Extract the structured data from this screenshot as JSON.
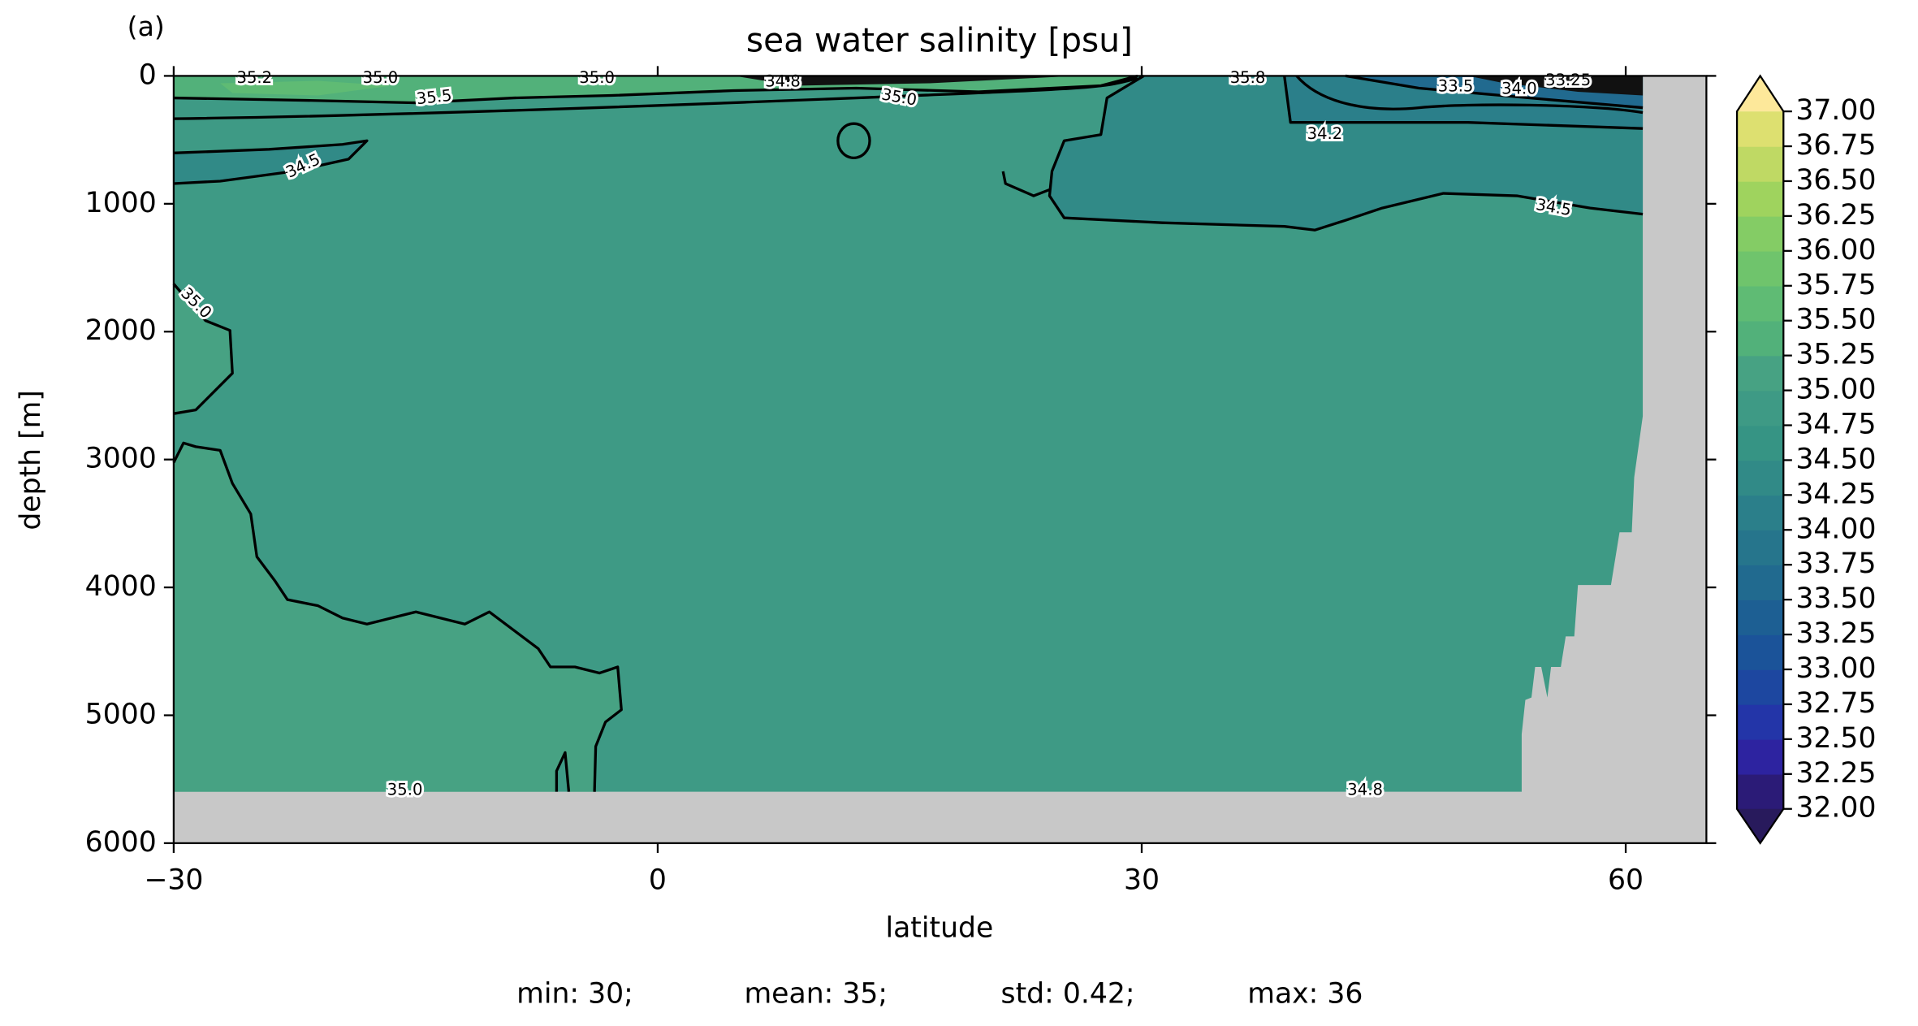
{
  "chart_data": {
    "type": "contour",
    "panel_label": "(a)",
    "title": "sea water salinity [psu]",
    "x_label": "latitude",
    "y_label": "depth [m]",
    "xlim": [
      -30,
      65
    ],
    "ylim": [
      6000,
      0
    ],
    "xticks": [
      {
        "value": -30,
        "label": "−30"
      },
      0,
      30,
      60
    ],
    "yticks": [
      0,
      1000,
      2000,
      3000,
      4000,
      5000,
      6000
    ],
    "land_color": "#c8c8c8",
    "colorbar": {
      "lim": [
        32,
        37
      ],
      "ticks": [
        {
          "value": 32,
          "label": "32.00"
        },
        {
          "value": 32.25,
          "label": "32.25"
        },
        {
          "value": 32.5,
          "label": "32.50"
        },
        {
          "value": 32.75,
          "label": "32.75"
        },
        {
          "value": 33,
          "label": "33.00"
        },
        {
          "value": 33.25,
          "label": "33.25"
        },
        {
          "value": 33.5,
          "label": "33.50"
        },
        {
          "value": 33.75,
          "label": "33.75"
        },
        {
          "value": 34,
          "label": "34.00"
        },
        {
          "value": 34.25,
          "label": "34.25"
        },
        {
          "value": 34.5,
          "label": "34.50"
        },
        {
          "value": 34.75,
          "label": "34.75"
        },
        {
          "value": 35,
          "label": "35.00"
        },
        {
          "value": 35.25,
          "label": "35.25"
        },
        {
          "value": 35.5,
          "label": "35.50"
        },
        {
          "value": 35.75,
          "label": "35.75"
        },
        {
          "value": 36,
          "label": "36.00"
        },
        {
          "value": 36.25,
          "label": "36.25"
        },
        {
          "value": 36.5,
          "label": "36.50"
        },
        {
          "value": 36.75,
          "label": "36.75"
        },
        {
          "value": 37,
          "label": "37.00"
        }
      ],
      "colors": [
        "#2b1b77",
        "#2d23a0",
        "#2335a8",
        "#1d47a0",
        "#1b5399",
        "#1d5f93",
        "#216a8f",
        "#26758c",
        "#2b7f8a",
        "#318a87",
        "#369484",
        "#3e9a85",
        "#47a283",
        "#52b17a",
        "#5fbb74",
        "#6fc46c",
        "#84cc65",
        "#9fd35e",
        "#bfd964",
        "#dde070"
      ],
      "under_color": "#281a5c",
      "over_color": "#fde89a"
    },
    "contour_labels": [
      "35.2",
      "35.0",
      "35.0",
      "34.8",
      "35.5",
      "35.0",
      "34.5",
      "35.0",
      "35.8",
      "33.5",
      "34.0",
      "33.25",
      "34.2",
      "34.5",
      "35.0",
      "34.8"
    ],
    "stats": [
      "min: 30;",
      "mean: 35;",
      "std: 0.42;",
      "max: 36"
    ]
  }
}
